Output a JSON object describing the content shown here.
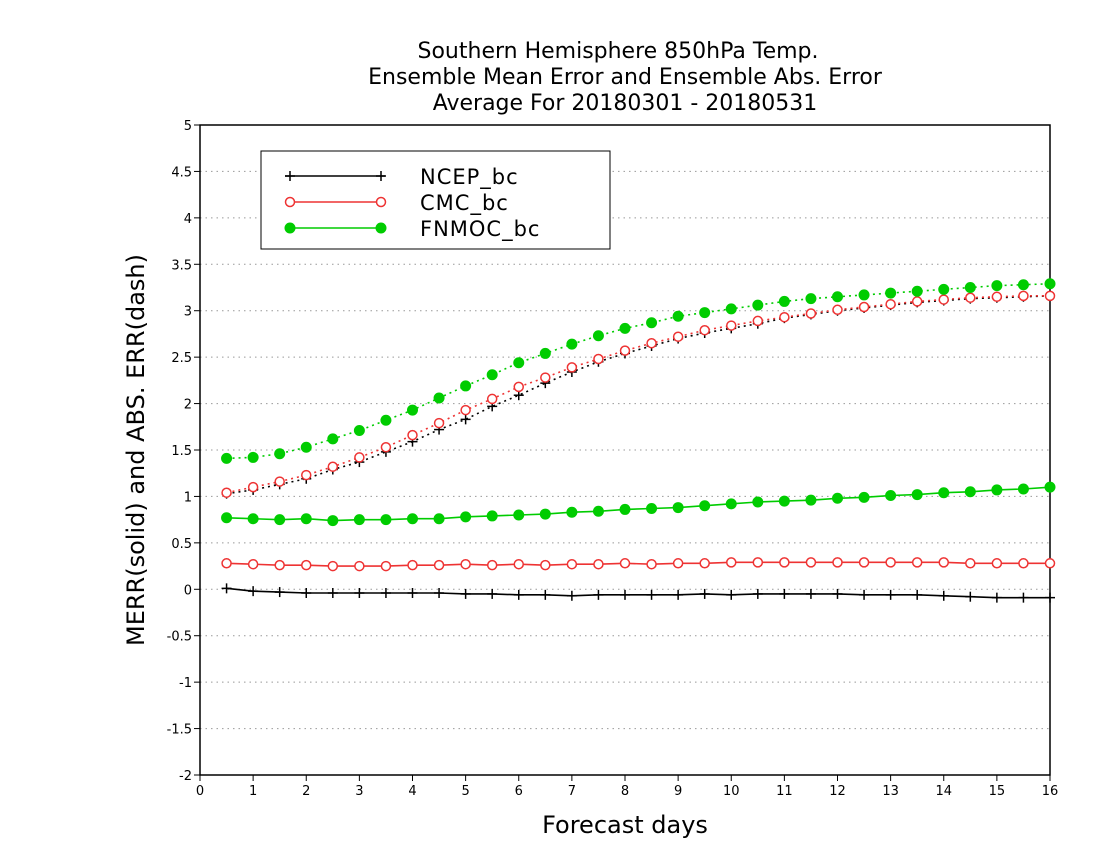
{
  "chart_data": {
    "type": "line",
    "title": [
      "Southern Hemisphere 850hPa Temp.",
      "Ensemble Mean Error and Ensemble Abs. Error",
      "Average For 20180301 - 20180531"
    ],
    "xlabel": "Forecast days",
    "ylabel": "MERR(solid) and ABS. ERR(dash)",
    "xlim": [
      0,
      16
    ],
    "ylim": [
      -2,
      5
    ],
    "x_ticks": [
      "0",
      "1",
      "2",
      "3",
      "4",
      "5",
      "6",
      "7",
      "8",
      "9",
      "10",
      "11",
      "12",
      "13",
      "14",
      "15",
      "16"
    ],
    "y_ticks": [
      "-2",
      "-1.5",
      "-1",
      "-0.5",
      "0",
      "0.5",
      "1",
      "1.5",
      "2",
      "2.5",
      "3",
      "3.5",
      "4",
      "4.5",
      "5"
    ],
    "grid": "horizontal-dotted",
    "legend_position": "top-left",
    "x": [
      0.5,
      1,
      1.5,
      2,
      2.5,
      3,
      3.5,
      4,
      4.5,
      5,
      5.5,
      6,
      6.5,
      7,
      7.5,
      8,
      8.5,
      9,
      9.5,
      10,
      10.5,
      11,
      11.5,
      12,
      12.5,
      13,
      13.5,
      14,
      14.5,
      15,
      15.5,
      16
    ],
    "series": [
      {
        "name": "NCEP_bc",
        "color": "#000000",
        "marker": "plus",
        "merr": [
          0.01,
          -0.02,
          -0.03,
          -0.04,
          -0.04,
          -0.04,
          -0.04,
          -0.04,
          -0.04,
          -0.05,
          -0.05,
          -0.06,
          -0.06,
          -0.07,
          -0.06,
          -0.06,
          -0.06,
          -0.06,
          -0.05,
          -0.06,
          -0.05,
          -0.05,
          -0.05,
          -0.05,
          -0.06,
          -0.06,
          -0.06,
          -0.07,
          -0.08,
          -0.09,
          -0.09,
          -0.09
        ],
        "abs_err": [
          1.03,
          1.07,
          1.13,
          1.19,
          1.29,
          1.37,
          1.48,
          1.59,
          1.72,
          1.83,
          1.97,
          2.09,
          2.22,
          2.34,
          2.45,
          2.54,
          2.62,
          2.7,
          2.76,
          2.81,
          2.86,
          2.92,
          2.96,
          3.0,
          3.03,
          3.06,
          3.09,
          3.11,
          3.13,
          3.14,
          3.15,
          3.16
        ]
      },
      {
        "name": "CMC_bc",
        "color": "#ee3333",
        "marker": "open-circle",
        "merr": [
          0.28,
          0.27,
          0.26,
          0.26,
          0.25,
          0.25,
          0.25,
          0.26,
          0.26,
          0.27,
          0.26,
          0.27,
          0.26,
          0.27,
          0.27,
          0.28,
          0.27,
          0.28,
          0.28,
          0.29,
          0.29,
          0.29,
          0.29,
          0.29,
          0.29,
          0.29,
          0.29,
          0.29,
          0.28,
          0.28,
          0.28,
          0.28
        ],
        "abs_err": [
          1.04,
          1.1,
          1.16,
          1.23,
          1.32,
          1.42,
          1.53,
          1.66,
          1.79,
          1.93,
          2.05,
          2.18,
          2.28,
          2.39,
          2.48,
          2.57,
          2.65,
          2.72,
          2.79,
          2.84,
          2.89,
          2.93,
          2.97,
          3.01,
          3.04,
          3.07,
          3.1,
          3.12,
          3.14,
          3.15,
          3.16,
          3.16
        ]
      },
      {
        "name": "FNMOC_bc",
        "color": "#00cc00",
        "marker": "filled-circle",
        "merr": [
          0.77,
          0.76,
          0.75,
          0.76,
          0.74,
          0.75,
          0.75,
          0.76,
          0.76,
          0.78,
          0.79,
          0.8,
          0.81,
          0.83,
          0.84,
          0.86,
          0.87,
          0.88,
          0.9,
          0.92,
          0.94,
          0.95,
          0.96,
          0.98,
          0.99,
          1.01,
          1.02,
          1.04,
          1.05,
          1.07,
          1.08,
          1.1
        ],
        "abs_err": [
          1.41,
          1.42,
          1.46,
          1.53,
          1.62,
          1.71,
          1.82,
          1.93,
          2.06,
          2.19,
          2.31,
          2.44,
          2.54,
          2.64,
          2.73,
          2.81,
          2.87,
          2.94,
          2.98,
          3.02,
          3.06,
          3.1,
          3.13,
          3.15,
          3.17,
          3.19,
          3.21,
          3.23,
          3.25,
          3.27,
          3.28,
          3.29
        ]
      }
    ]
  }
}
